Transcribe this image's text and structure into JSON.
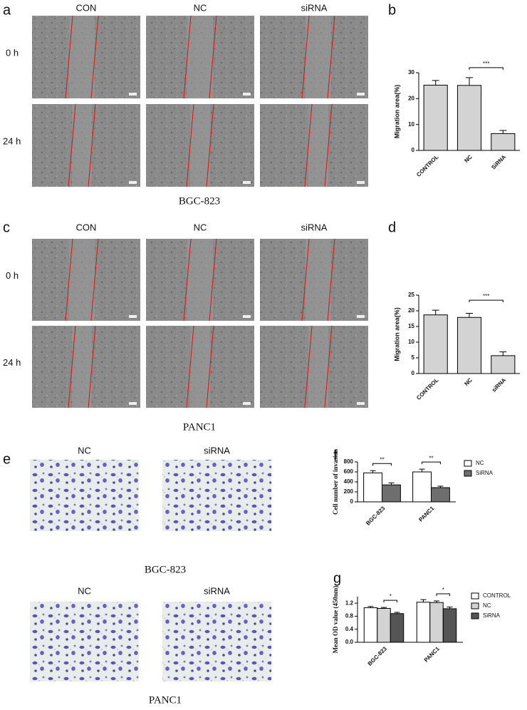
{
  "figure": {
    "scratch": [
      {
        "letter": "a",
        "columns": [
          "CON",
          "NC",
          "siRNA"
        ],
        "rows": [
          "0 h",
          "24 h"
        ],
        "caption": "BGC-823"
      },
      {
        "letter": "c",
        "columns": [
          "CON",
          "NC",
          "siRNA"
        ],
        "rows": [
          "0 h",
          "24 h"
        ],
        "caption": "PANC1"
      }
    ],
    "transwell": {
      "letter": "e",
      "blocks": [
        {
          "columns": [
            "NC",
            "siRNA"
          ],
          "caption": "BGC-823"
        },
        {
          "columns": [
            "NC",
            "siRNA"
          ],
          "caption": "PANC1"
        }
      ]
    }
  },
  "chart_data": [
    {
      "type": "bar",
      "panel": "b",
      "ylabel": "Migration area(%)",
      "categories": [
        "CONTROL",
        "NC",
        "SiRNA"
      ],
      "values": [
        25.2,
        25.1,
        6.5
      ],
      "errors": [
        1.8,
        3.0,
        1.2
      ],
      "color": "#d3d3d3",
      "ylim": [
        0,
        30
      ],
      "yticks": [
        0,
        10,
        20,
        30
      ],
      "annotations": [
        {
          "from": 1,
          "to": 2,
          "label": "***"
        }
      ]
    },
    {
      "type": "bar",
      "panel": "d",
      "ylabel": "Migration area(%)",
      "categories": [
        "CONTROL",
        "NC",
        "siRNA"
      ],
      "values": [
        18.7,
        17.9,
        5.7
      ],
      "errors": [
        1.5,
        1.3,
        1.2
      ],
      "color": "#d3d3d3",
      "ylim": [
        0,
        25
      ],
      "yticks": [
        0,
        5,
        10,
        15,
        20,
        25
      ],
      "annotations": [
        {
          "from": 1,
          "to": 2,
          "label": "***"
        }
      ]
    },
    {
      "type": "grouped-bar",
      "panel": "f",
      "ylabel": "Cell number of invasion",
      "categories": [
        "BGC-823",
        "PANC1"
      ],
      "series": [
        {
          "name": "NC",
          "color": "#ffffff",
          "values": [
            580,
            600
          ],
          "errors": [
            45,
            55
          ]
        },
        {
          "name": "SiRNA",
          "color": "#6e6e6e",
          "values": [
            340,
            285
          ],
          "errors": [
            40,
            30
          ]
        }
      ],
      "ylim": [
        0,
        800
      ],
      "yticks": [
        0,
        200,
        400,
        600,
        800
      ],
      "annotations": [
        {
          "category": 0,
          "from": 0,
          "to": 1,
          "label": "**"
        },
        {
          "category": 1,
          "from": 0,
          "to": 1,
          "label": "**"
        }
      ]
    },
    {
      "type": "grouped-bar",
      "panel": "g",
      "ylabel": "Mean OD value (450nm)",
      "categories": [
        "BGC-823",
        "PANC1"
      ],
      "series": [
        {
          "name": "CONTROL",
          "color": "#ffffff",
          "values": [
            1.06,
            1.23
          ],
          "errors": [
            0.04,
            0.08
          ]
        },
        {
          "name": "NC",
          "color": "#d3d3d3",
          "values": [
            1.04,
            1.22
          ],
          "errors": [
            0.03,
            0.05
          ]
        },
        {
          "name": "SiRNA",
          "color": "#555555",
          "values": [
            0.88,
            1.03
          ],
          "errors": [
            0.04,
            0.05
          ]
        }
      ],
      "ylim": [
        0,
        1.4
      ],
      "yticks": [
        {
          "value": 0,
          "label": "0.0"
        },
        0.4,
        0.8,
        1.2
      ],
      "annotations": [
        {
          "category": 0,
          "from": 1,
          "to": 2,
          "label": "*"
        },
        {
          "category": 1,
          "from": 1,
          "to": 2,
          "label": "*"
        }
      ]
    }
  ]
}
